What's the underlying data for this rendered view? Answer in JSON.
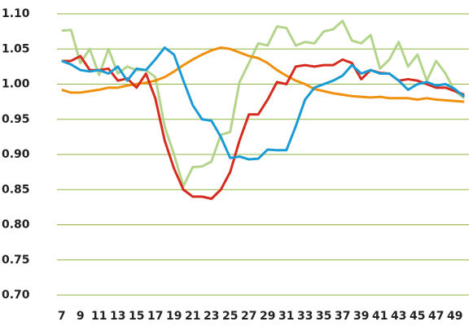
{
  "chart_data": {
    "type": "line",
    "x": [
      7,
      8,
      9,
      10,
      11,
      12,
      13,
      14,
      15,
      16,
      17,
      18,
      19,
      20,
      21,
      22,
      23,
      24,
      25,
      26,
      27,
      28,
      29,
      30,
      31,
      32,
      33,
      34,
      35,
      36,
      37,
      38,
      39,
      40,
      41,
      42,
      43,
      44,
      45,
      46,
      47,
      48,
      49,
      50
    ],
    "xlim": [
      6.5,
      50.5
    ],
    "xticks": [
      7,
      9,
      11,
      13,
      15,
      17,
      19,
      21,
      23,
      25,
      27,
      29,
      31,
      33,
      35,
      37,
      39,
      41,
      43,
      45,
      47,
      49
    ],
    "ylim": [
      0.7,
      1.1
    ],
    "yticks": [
      {
        "value": 1.1,
        "label": "1.10"
      },
      1.05,
      {
        "value": 1.0,
        "label": "1.00"
      },
      0.95,
      {
        "value": 0.9,
        "label": "0.90"
      },
      0.85,
      {
        "value": 0.8,
        "label": "0.80"
      },
      0.75,
      {
        "value": 0.7,
        "label": "0.70"
      }
    ],
    "grid": true,
    "series": [
      {
        "color": "#b5d48b",
        "values": [
          1.076,
          1.077,
          1.03,
          1.05,
          1.013,
          1.05,
          1.015,
          1.025,
          1.02,
          1.02,
          1.01,
          0.94,
          0.9,
          0.855,
          0.882,
          0.883,
          0.89,
          0.928,
          0.932,
          1.003,
          1.03,
          1.058,
          1.055,
          1.082,
          1.08,
          1.055,
          1.06,
          1.058,
          1.075,
          1.078,
          1.09,
          1.062,
          1.058,
          1.07,
          1.022,
          1.035,
          1.06,
          1.025,
          1.042,
          1.005,
          1.033,
          1.015,
          0.99,
          0.98
        ]
      },
      {
        "color": "#f0900f",
        "values": [
          0.992,
          0.988,
          0.988,
          0.99,
          0.992,
          0.995,
          0.995,
          0.998,
          1.0,
          1.002,
          1.005,
          1.01,
          1.018,
          1.027,
          1.035,
          1.042,
          1.048,
          1.052,
          1.05,
          1.045,
          1.04,
          1.037,
          1.03,
          1.02,
          1.012,
          1.005,
          1.0,
          0.993,
          0.99,
          0.987,
          0.985,
          0.983,
          0.982,
          0.981,
          0.982,
          0.98,
          0.98,
          0.98,
          0.978,
          0.98,
          0.978,
          0.977,
          0.976,
          0.975
        ]
      },
      {
        "color": "#d62b1f",
        "values": [
          1.033,
          1.033,
          1.04,
          1.02,
          1.02,
          1.022,
          1.005,
          1.008,
          0.995,
          1.015,
          0.98,
          0.92,
          0.88,
          0.85,
          0.84,
          0.84,
          0.837,
          0.85,
          0.875,
          0.92,
          0.957,
          0.957,
          0.978,
          1.003,
          1.0,
          1.025,
          1.027,
          1.025,
          1.027,
          1.027,
          1.035,
          1.03,
          1.007,
          1.02,
          1.016,
          1.015,
          1.005,
          1.007,
          1.005,
          1.0,
          0.995,
          0.995,
          0.99,
          0.985
        ]
      },
      {
        "color": "#1a9bd4",
        "values": [
          1.033,
          1.028,
          1.02,
          1.018,
          1.02,
          1.015,
          1.025,
          1.005,
          1.022,
          1.02,
          1.035,
          1.052,
          1.042,
          1.005,
          0.97,
          0.95,
          0.948,
          0.925,
          0.895,
          0.897,
          0.893,
          0.894,
          0.907,
          0.906,
          0.906,
          0.94,
          0.978,
          0.995,
          1.0,
          1.005,
          1.012,
          1.027,
          1.015,
          1.02,
          1.015,
          1.015,
          1.005,
          0.992,
          1.0,
          1.003,
          0.998,
          1.0,
          0.993,
          0.982
        ]
      }
    ]
  }
}
